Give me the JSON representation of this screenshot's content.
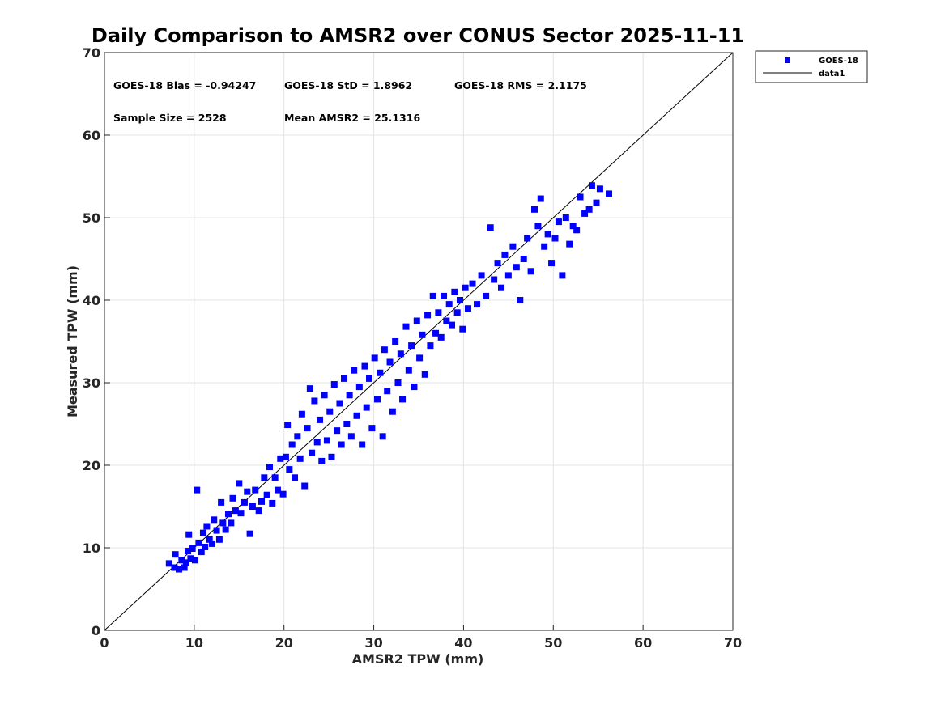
{
  "chart_data": {
    "type": "scatter",
    "title": "Daily Comparison to AMSR2 over CONUS Sector 2025-11-11",
    "xlabel": "AMSR2 TPW (mm)",
    "ylabel": "Measured TPW (mm)",
    "xlim": [
      0,
      70
    ],
    "ylim": [
      0,
      70
    ],
    "xticks": [
      0,
      10,
      20,
      30,
      40,
      50,
      60,
      70
    ],
    "yticks": [
      0,
      10,
      20,
      30,
      40,
      50,
      60,
      70
    ],
    "grid": true,
    "legend_position": "outside-top-right",
    "legend": [
      {
        "label": "GOES-18",
        "marker": "square",
        "color": "#0000ff"
      },
      {
        "label": "data1",
        "marker": "line",
        "color": "#000000"
      }
    ],
    "annotations": [
      {
        "id": "bias",
        "text": "GOES-18 Bias = -0.94247"
      },
      {
        "id": "std",
        "text": "GOES-18 StD = 1.8962"
      },
      {
        "id": "rms",
        "text": "GOES-18 RMS = 2.1175"
      },
      {
        "id": "n",
        "text": "Sample Size = 2528"
      },
      {
        "id": "mean",
        "text": "Mean AMSR2 = 25.1316"
      }
    ],
    "series": [
      {
        "name": "GOES-18",
        "color": "#0000ff",
        "marker": "square",
        "points": [
          [
            7.2,
            8.1
          ],
          [
            7.8,
            7.6
          ],
          [
            7.9,
            9.2
          ],
          [
            8.3,
            7.4
          ],
          [
            8.6,
            8.5
          ],
          [
            8.9,
            7.6
          ],
          [
            9.1,
            8.2
          ],
          [
            9.3,
            9.6
          ],
          [
            9.4,
            11.6
          ],
          [
            9.6,
            8.7
          ],
          [
            9.8,
            9.9
          ],
          [
            10.1,
            8.5
          ],
          [
            10.3,
            17.0
          ],
          [
            10.5,
            10.6
          ],
          [
            10.8,
            9.5
          ],
          [
            11.0,
            11.8
          ],
          [
            11.2,
            10.1
          ],
          [
            11.4,
            12.6
          ],
          [
            11.7,
            11.0
          ],
          [
            12.0,
            10.5
          ],
          [
            12.2,
            13.4
          ],
          [
            12.5,
            12.1
          ],
          [
            12.8,
            11.0
          ],
          [
            13.0,
            15.5
          ],
          [
            13.2,
            13.0
          ],
          [
            13.5,
            12.2
          ],
          [
            13.8,
            14.1
          ],
          [
            14.1,
            13.0
          ],
          [
            14.3,
            16.0
          ],
          [
            14.6,
            14.5
          ],
          [
            15.0,
            17.8
          ],
          [
            15.2,
            14.2
          ],
          [
            15.6,
            15.5
          ],
          [
            15.9,
            16.8
          ],
          [
            16.2,
            11.7
          ],
          [
            16.5,
            15.0
          ],
          [
            16.8,
            17.0
          ],
          [
            17.2,
            14.5
          ],
          [
            17.5,
            15.6
          ],
          [
            17.8,
            18.5
          ],
          [
            18.1,
            16.4
          ],
          [
            18.4,
            19.8
          ],
          [
            18.7,
            15.4
          ],
          [
            19.0,
            18.5
          ],
          [
            19.3,
            17.0
          ],
          [
            19.6,
            20.8
          ],
          [
            19.9,
            16.5
          ],
          [
            20.2,
            21.0
          ],
          [
            20.4,
            24.9
          ],
          [
            20.6,
            19.5
          ],
          [
            20.9,
            22.5
          ],
          [
            21.2,
            18.5
          ],
          [
            21.5,
            23.5
          ],
          [
            21.8,
            20.8
          ],
          [
            22.0,
            26.2
          ],
          [
            22.3,
            17.5
          ],
          [
            22.6,
            24.5
          ],
          [
            22.9,
            29.3
          ],
          [
            23.1,
            21.5
          ],
          [
            23.4,
            27.8
          ],
          [
            23.7,
            22.8
          ],
          [
            24.0,
            25.5
          ],
          [
            24.2,
            20.5
          ],
          [
            24.5,
            28.5
          ],
          [
            24.8,
            23.0
          ],
          [
            25.1,
            26.5
          ],
          [
            25.3,
            21.0
          ],
          [
            25.6,
            29.8
          ],
          [
            25.9,
            24.2
          ],
          [
            26.2,
            27.5
          ],
          [
            26.4,
            22.5
          ],
          [
            26.7,
            30.5
          ],
          [
            27.0,
            25.0
          ],
          [
            27.3,
            28.5
          ],
          [
            27.5,
            23.5
          ],
          [
            27.8,
            31.5
          ],
          [
            28.1,
            26.0
          ],
          [
            28.4,
            29.5
          ],
          [
            28.7,
            22.5
          ],
          [
            29.0,
            32.0
          ],
          [
            29.2,
            27.0
          ],
          [
            29.5,
            30.5
          ],
          [
            29.8,
            24.5
          ],
          [
            30.1,
            33.0
          ],
          [
            30.4,
            28.0
          ],
          [
            30.7,
            31.2
          ],
          [
            31.0,
            23.5
          ],
          [
            31.2,
            34.0
          ],
          [
            31.5,
            29.0
          ],
          [
            31.8,
            32.5
          ],
          [
            32.1,
            26.5
          ],
          [
            32.4,
            35.0
          ],
          [
            32.7,
            30.0
          ],
          [
            33.0,
            33.5
          ],
          [
            33.2,
            28.0
          ],
          [
            33.6,
            36.8
          ],
          [
            33.9,
            31.5
          ],
          [
            34.2,
            34.5
          ],
          [
            34.5,
            29.5
          ],
          [
            34.8,
            37.5
          ],
          [
            35.1,
            33.0
          ],
          [
            35.4,
            35.8
          ],
          [
            35.7,
            31.0
          ],
          [
            36.0,
            38.2
          ],
          [
            36.3,
            34.5
          ],
          [
            36.6,
            40.5
          ],
          [
            36.9,
            36.0
          ],
          [
            37.2,
            38.5
          ],
          [
            37.5,
            35.5
          ],
          [
            37.8,
            40.5
          ],
          [
            38.1,
            37.5
          ],
          [
            38.4,
            39.5
          ],
          [
            38.7,
            37.0
          ],
          [
            39.0,
            41.0
          ],
          [
            39.3,
            38.5
          ],
          [
            39.6,
            40.0
          ],
          [
            39.9,
            36.5
          ],
          [
            40.2,
            41.5
          ],
          [
            40.5,
            39.0
          ],
          [
            41.0,
            42.0
          ],
          [
            41.5,
            39.5
          ],
          [
            42.0,
            43.0
          ],
          [
            42.5,
            40.5
          ],
          [
            43.0,
            48.8
          ],
          [
            43.4,
            42.5
          ],
          [
            43.8,
            44.5
          ],
          [
            44.2,
            41.5
          ],
          [
            44.6,
            45.5
          ],
          [
            45.0,
            43.0
          ],
          [
            45.5,
            46.5
          ],
          [
            45.9,
            44.0
          ],
          [
            46.3,
            40.0
          ],
          [
            46.7,
            45.0
          ],
          [
            47.1,
            47.5
          ],
          [
            47.5,
            43.5
          ],
          [
            47.9,
            51.0
          ],
          [
            48.3,
            49.0
          ],
          [
            48.6,
            52.3
          ],
          [
            49.0,
            46.5
          ],
          [
            49.4,
            48.0
          ],
          [
            49.8,
            44.5
          ],
          [
            50.2,
            47.5
          ],
          [
            50.6,
            49.5
          ],
          [
            51.0,
            43.0
          ],
          [
            51.4,
            50.0
          ],
          [
            51.8,
            46.8
          ],
          [
            52.2,
            49.0
          ],
          [
            52.6,
            48.5
          ],
          [
            53.0,
            52.5
          ],
          [
            53.5,
            50.5
          ],
          [
            54.0,
            51.0
          ],
          [
            54.3,
            53.9
          ],
          [
            54.8,
            51.8
          ],
          [
            55.2,
            53.5
          ],
          [
            56.2,
            52.9
          ]
        ]
      },
      {
        "name": "data1",
        "color": "#000000",
        "line": [
          [
            0,
            0
          ],
          [
            70,
            70
          ]
        ]
      }
    ]
  }
}
